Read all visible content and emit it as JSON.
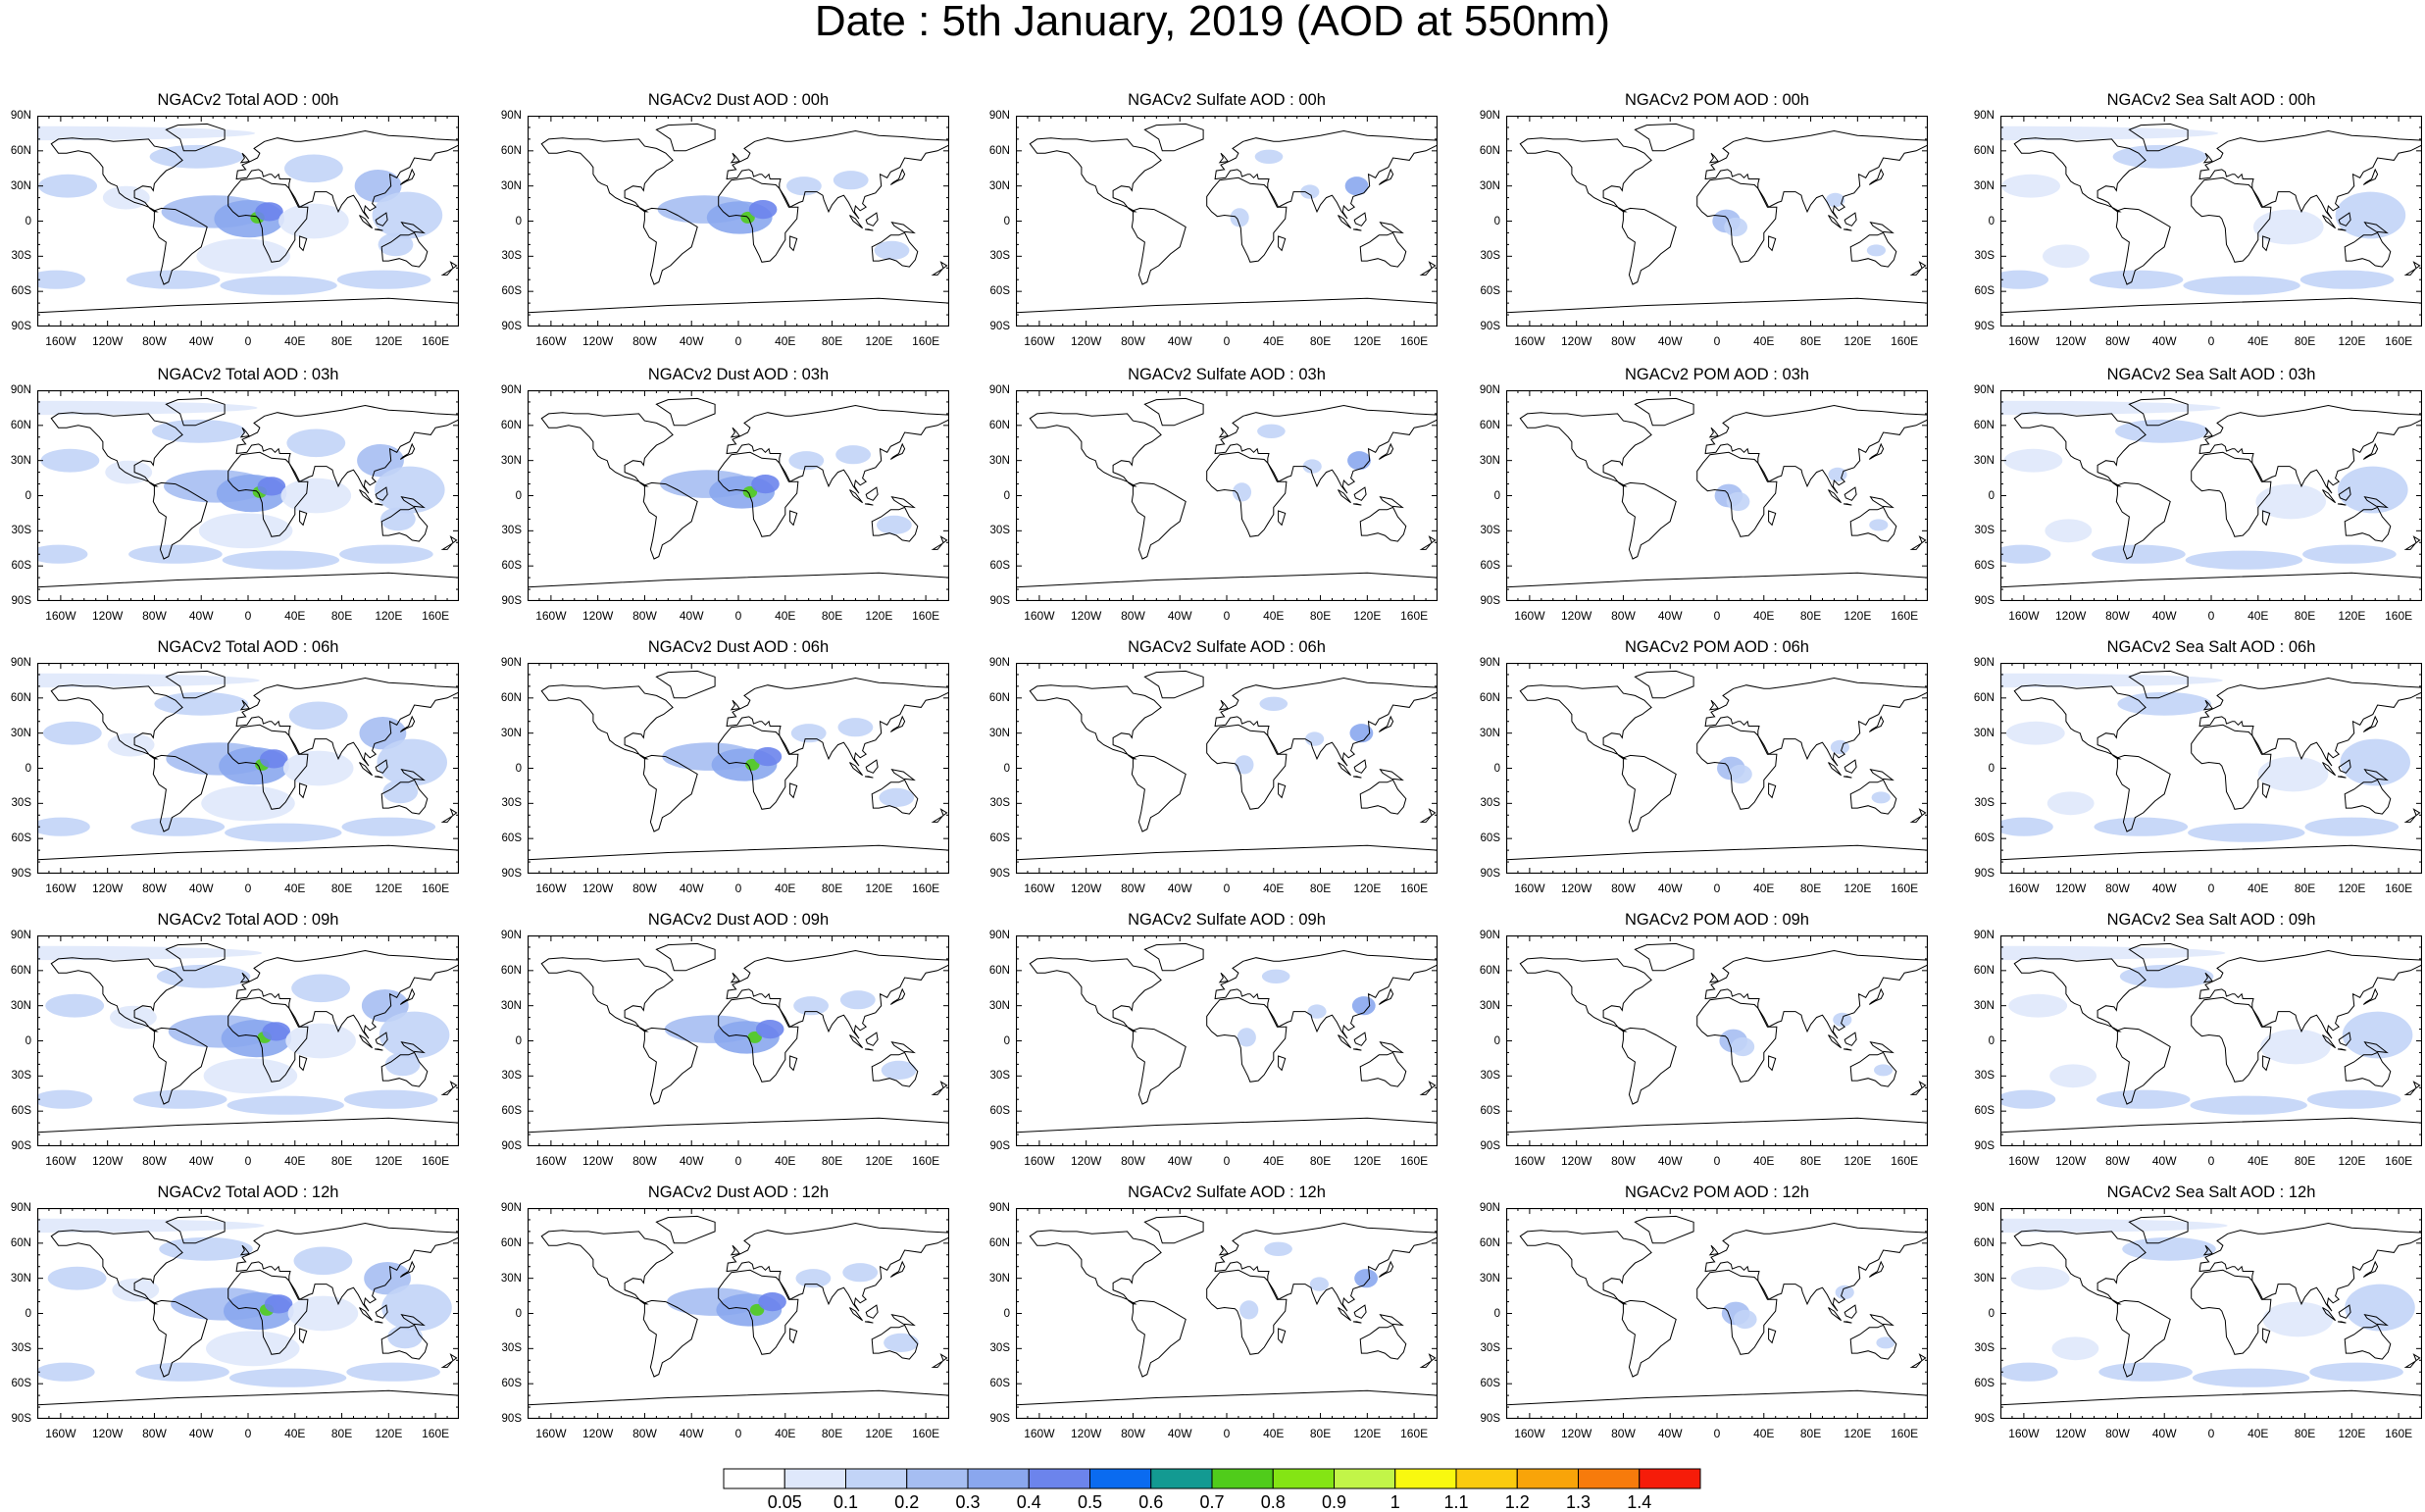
{
  "title": "Date : 5th January, 2019 (AOD at 550nm)",
  "lat_ticks": [
    "90N",
    "60N",
    "30N",
    "0",
    "30S",
    "60S",
    "90S"
  ],
  "lon_ticks": [
    "160W",
    "120W",
    "80W",
    "40W",
    "0",
    "40E",
    "80E",
    "120E",
    "160E"
  ],
  "variables": [
    "total",
    "dust",
    "sulfate",
    "pom",
    "seasalt"
  ],
  "panel_titles": [
    [
      "NGACv2 Total AOD : 00h",
      "NGACv2 Dust AOD : 00h",
      "NGACv2 Sulfate AOD : 00h",
      "NGACv2 POM AOD : 00h",
      "NGACv2 Sea Salt AOD : 00h"
    ],
    [
      "NGACv2 Total AOD : 03h",
      "NGACv2 Dust AOD : 03h",
      "NGACv2 Sulfate AOD : 03h",
      "NGACv2 POM AOD : 03h",
      "NGACv2 Sea Salt AOD : 03h"
    ],
    [
      "NGACv2 Total AOD : 06h",
      "NGACv2 Dust AOD : 06h",
      "NGACv2 Sulfate AOD : 06h",
      "NGACv2 POM AOD : 06h",
      "NGACv2 Sea Salt AOD : 06h"
    ],
    [
      "NGACv2 Total AOD : 09h",
      "NGACv2 Dust AOD : 09h",
      "NGACv2 Sulfate AOD : 09h",
      "NGACv2 POM AOD : 09h",
      "NGACv2 Sea Salt  AOD : 09h"
    ],
    [
      "NGACv2 Total AOD :  12h",
      "NGACv2 Dust AOD : 12h",
      "NGACv2 Sulfate AOD : 12h",
      "NGACv2 POM  AOD : 12h",
      "NGACv2 Sea Salt AOD : 12h"
    ]
  ],
  "colorbar": {
    "labels": [
      "0.05",
      "0.1",
      "0.2",
      "0.3",
      "0.4",
      "0.5",
      "0.6",
      "0.7",
      "0.8",
      "0.9",
      "1",
      "1.1",
      "1.2",
      "1.3",
      "1.4"
    ],
    "colors": [
      "#ffffff",
      "#dfe8fb",
      "#c2d4f7",
      "#a6bef2",
      "#8aa7ee",
      "#6c84ec",
      "#0a6bf0",
      "#139a92",
      "#50cc1b",
      "#84e514",
      "#c2f548",
      "#f9f90f",
      "#fbcb0e",
      "#f9a409",
      "#f77b0c",
      "#f61c09"
    ]
  }
}
